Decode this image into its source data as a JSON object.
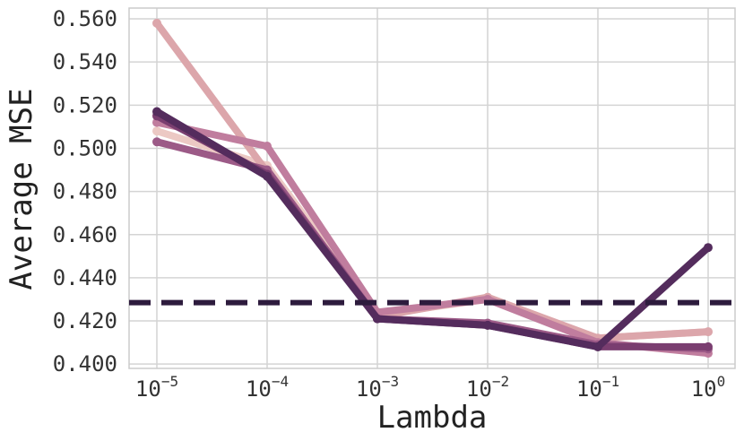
{
  "chart_data": {
    "type": "line",
    "xscale": "log",
    "x": [
      1e-05,
      0.0001,
      0.001,
      0.01,
      0.1,
      1
    ],
    "xticks": [
      {
        "base": "10",
        "exp": "−5"
      },
      {
        "base": "10",
        "exp": "−4"
      },
      {
        "base": "10",
        "exp": "−3"
      },
      {
        "base": "10",
        "exp": "−2"
      },
      {
        "base": "10",
        "exp": "−1"
      },
      {
        "base": "10",
        "exp": "0"
      }
    ],
    "ylim": [
      0.398,
      0.565
    ],
    "yticks": [
      "0.400",
      "0.420",
      "0.440",
      "0.460",
      "0.480",
      "0.500",
      "0.520",
      "0.540",
      "0.560"
    ],
    "xlabel": "Lambda",
    "ylabel": "Average MSE",
    "grid": true,
    "baseline": {
      "y": 0.4285,
      "style": "dashed",
      "color": "#2d1b3d"
    },
    "series": [
      {
        "color": "#ecc9c4",
        "values": [
          0.508,
          0.492,
          0.423,
          0.43,
          0.412,
          0.415
        ]
      },
      {
        "color": "#dca6ab",
        "values": [
          0.558,
          0.489,
          0.422,
          0.431,
          0.412,
          0.415
        ]
      },
      {
        "color": "#c07d9e",
        "values": [
          0.512,
          0.501,
          0.424,
          0.43,
          0.41,
          0.405
        ]
      },
      {
        "color": "#9c5a87",
        "values": [
          0.503,
          0.49,
          0.421,
          0.419,
          0.409,
          0.407
        ]
      },
      {
        "color": "#7a3e70",
        "values": [
          0.515,
          0.488,
          0.421,
          0.418,
          0.408,
          0.408
        ]
      },
      {
        "color": "#542c5d",
        "values": [
          0.517,
          0.487,
          0.421,
          0.418,
          0.408,
          0.454
        ]
      }
    ]
  }
}
